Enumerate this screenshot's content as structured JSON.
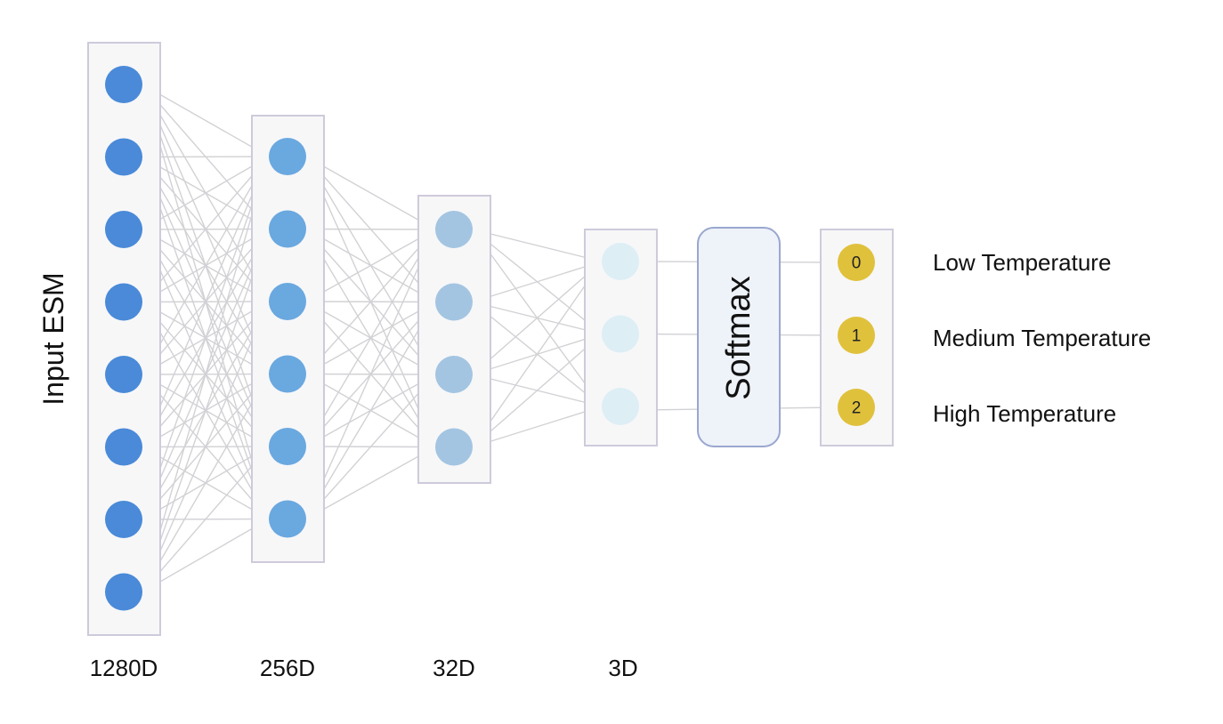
{
  "diagram": {
    "input_label": "Input ESM",
    "softmax_label": "Softmax",
    "layers": [
      {
        "dimension_label": "1280D",
        "node_count": 8,
        "node_color": "#4a8ad8"
      },
      {
        "dimension_label": "256D",
        "node_count": 6,
        "node_color": "#6aa8e0"
      },
      {
        "dimension_label": "32D",
        "node_count": 4,
        "node_color": "#a3c5e2"
      },
      {
        "dimension_label": "3D",
        "node_count": 3,
        "node_color": "#ddeef5"
      }
    ],
    "outputs": [
      {
        "index": "0",
        "label": "Low Temperature"
      },
      {
        "index": "1",
        "label": "Medium Temperature"
      },
      {
        "index": "2",
        "label": "High Temperature"
      }
    ],
    "output_node_color": "#e0c13c",
    "connection_color": "#d2d2d6"
  }
}
